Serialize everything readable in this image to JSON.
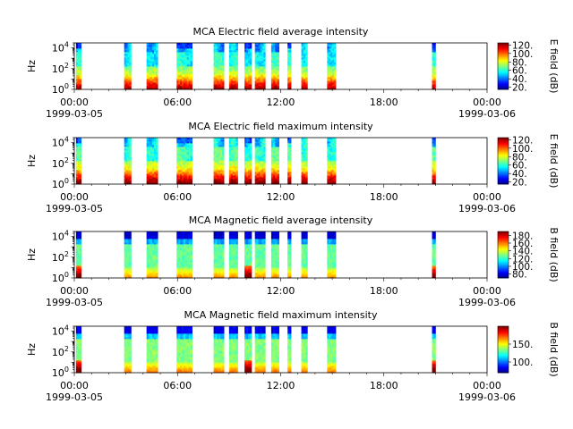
{
  "chart_data": [
    {
      "type": "heatmap",
      "title": "MCA  Electric field average intensity",
      "ylabel": "Hz",
      "yscale": "log",
      "ylim": [
        1,
        30000
      ],
      "yticks": [
        {
          "base": "10",
          "exp": "0"
        },
        {
          "base": "10",
          "exp": "2"
        },
        {
          "base": "10",
          "exp": "4"
        }
      ],
      "xlim": [
        "1999-03-05 00:00",
        "1999-03-06 00:00"
      ],
      "xticks": [
        "00:00",
        "06:00",
        "12:00",
        "18:00",
        "00:00"
      ],
      "xdates": {
        "start": "1999-03-05",
        "end": "1999-03-06"
      },
      "colorbar": {
        "label": "E field (dB)",
        "min": 15,
        "max": 125,
        "ticks": [
          20,
          40,
          60,
          80,
          100,
          120
        ],
        "labels": [
          "20.",
          "40.",
          "60.",
          "80.",
          "100.",
          "120."
        ],
        "colormap": "jet"
      },
      "coverage_hours": [
        [
          0.1,
          0.4
        ],
        [
          2.9,
          3.3
        ],
        [
          4.2,
          4.85
        ],
        [
          5.95,
          6.85
        ],
        [
          8.1,
          8.7
        ],
        [
          9.0,
          9.5
        ],
        [
          9.9,
          10.3
        ],
        [
          10.5,
          11.1
        ],
        [
          11.45,
          11.9
        ],
        [
          12.4,
          12.6
        ],
        [
          13.2,
          13.55
        ],
        [
          14.7,
          15.2
        ],
        [
          20.8,
          21.0
        ]
      ],
      "intensity": "average-E"
    },
    {
      "type": "heatmap",
      "title": "MCA  Electric field maximum intensity",
      "ylabel": "Hz",
      "yscale": "log",
      "ylim": [
        1,
        30000
      ],
      "yticks": [
        {
          "base": "10",
          "exp": "0"
        },
        {
          "base": "10",
          "exp": "2"
        },
        {
          "base": "10",
          "exp": "4"
        }
      ],
      "xlim": [
        "1999-03-05 00:00",
        "1999-03-06 00:00"
      ],
      "xticks": [
        "00:00",
        "06:00",
        "12:00",
        "18:00",
        "00:00"
      ],
      "xdates": {
        "start": "1999-03-05",
        "end": "1999-03-06"
      },
      "colorbar": {
        "label": "E field (dB)",
        "min": 15,
        "max": 125,
        "ticks": [
          20,
          40,
          60,
          80,
          100,
          120
        ],
        "labels": [
          "20.",
          "40.",
          "60.",
          "80.",
          "100.",
          "120."
        ],
        "colormap": "jet"
      },
      "intensity": "maximum-E"
    },
    {
      "type": "heatmap",
      "title": "MCA  Magnetic field average intensity",
      "ylabel": "Hz",
      "yscale": "log",
      "ylim": [
        1,
        30000
      ],
      "yticks": [
        {
          "base": "10",
          "exp": "0"
        },
        {
          "base": "10",
          "exp": "2"
        },
        {
          "base": "10",
          "exp": "4"
        }
      ],
      "xlim": [
        "1999-03-05 00:00",
        "1999-03-06 00:00"
      ],
      "xticks": [
        "00:00",
        "06:00",
        "12:00",
        "18:00",
        "00:00"
      ],
      "xdates": {
        "start": "1999-03-05",
        "end": "1999-03-06"
      },
      "colorbar": {
        "label": "B field (dB)",
        "min": 70,
        "max": 190,
        "ticks": [
          80,
          100,
          120,
          140,
          160,
          180
        ],
        "labels": [
          "80.",
          "100.",
          "120.",
          "140.",
          "160.",
          "180."
        ],
        "colormap": "jet"
      },
      "intensity": "average-B"
    },
    {
      "type": "heatmap",
      "title": "MCA  Magnetic field maximum intensity",
      "ylabel": "Hz",
      "yscale": "log",
      "ylim": [
        1,
        30000
      ],
      "yticks": [
        {
          "base": "10",
          "exp": "0"
        },
        {
          "base": "10",
          "exp": "2"
        },
        {
          "base": "10",
          "exp": "4"
        }
      ],
      "xlim": [
        "1999-03-05 00:00",
        "1999-03-06 00:00"
      ],
      "xticks": [
        "00:00",
        "06:00",
        "12:00",
        "18:00",
        "00:00"
      ],
      "xdates": {
        "start": "1999-03-05",
        "end": "1999-03-06"
      },
      "colorbar": {
        "label": "B field (dB)",
        "min": 70,
        "max": 200,
        "ticks": [
          100,
          150
        ],
        "labels": [
          "100.",
          "150."
        ],
        "colormap": "jet"
      },
      "intensity": "maximum-B"
    }
  ]
}
